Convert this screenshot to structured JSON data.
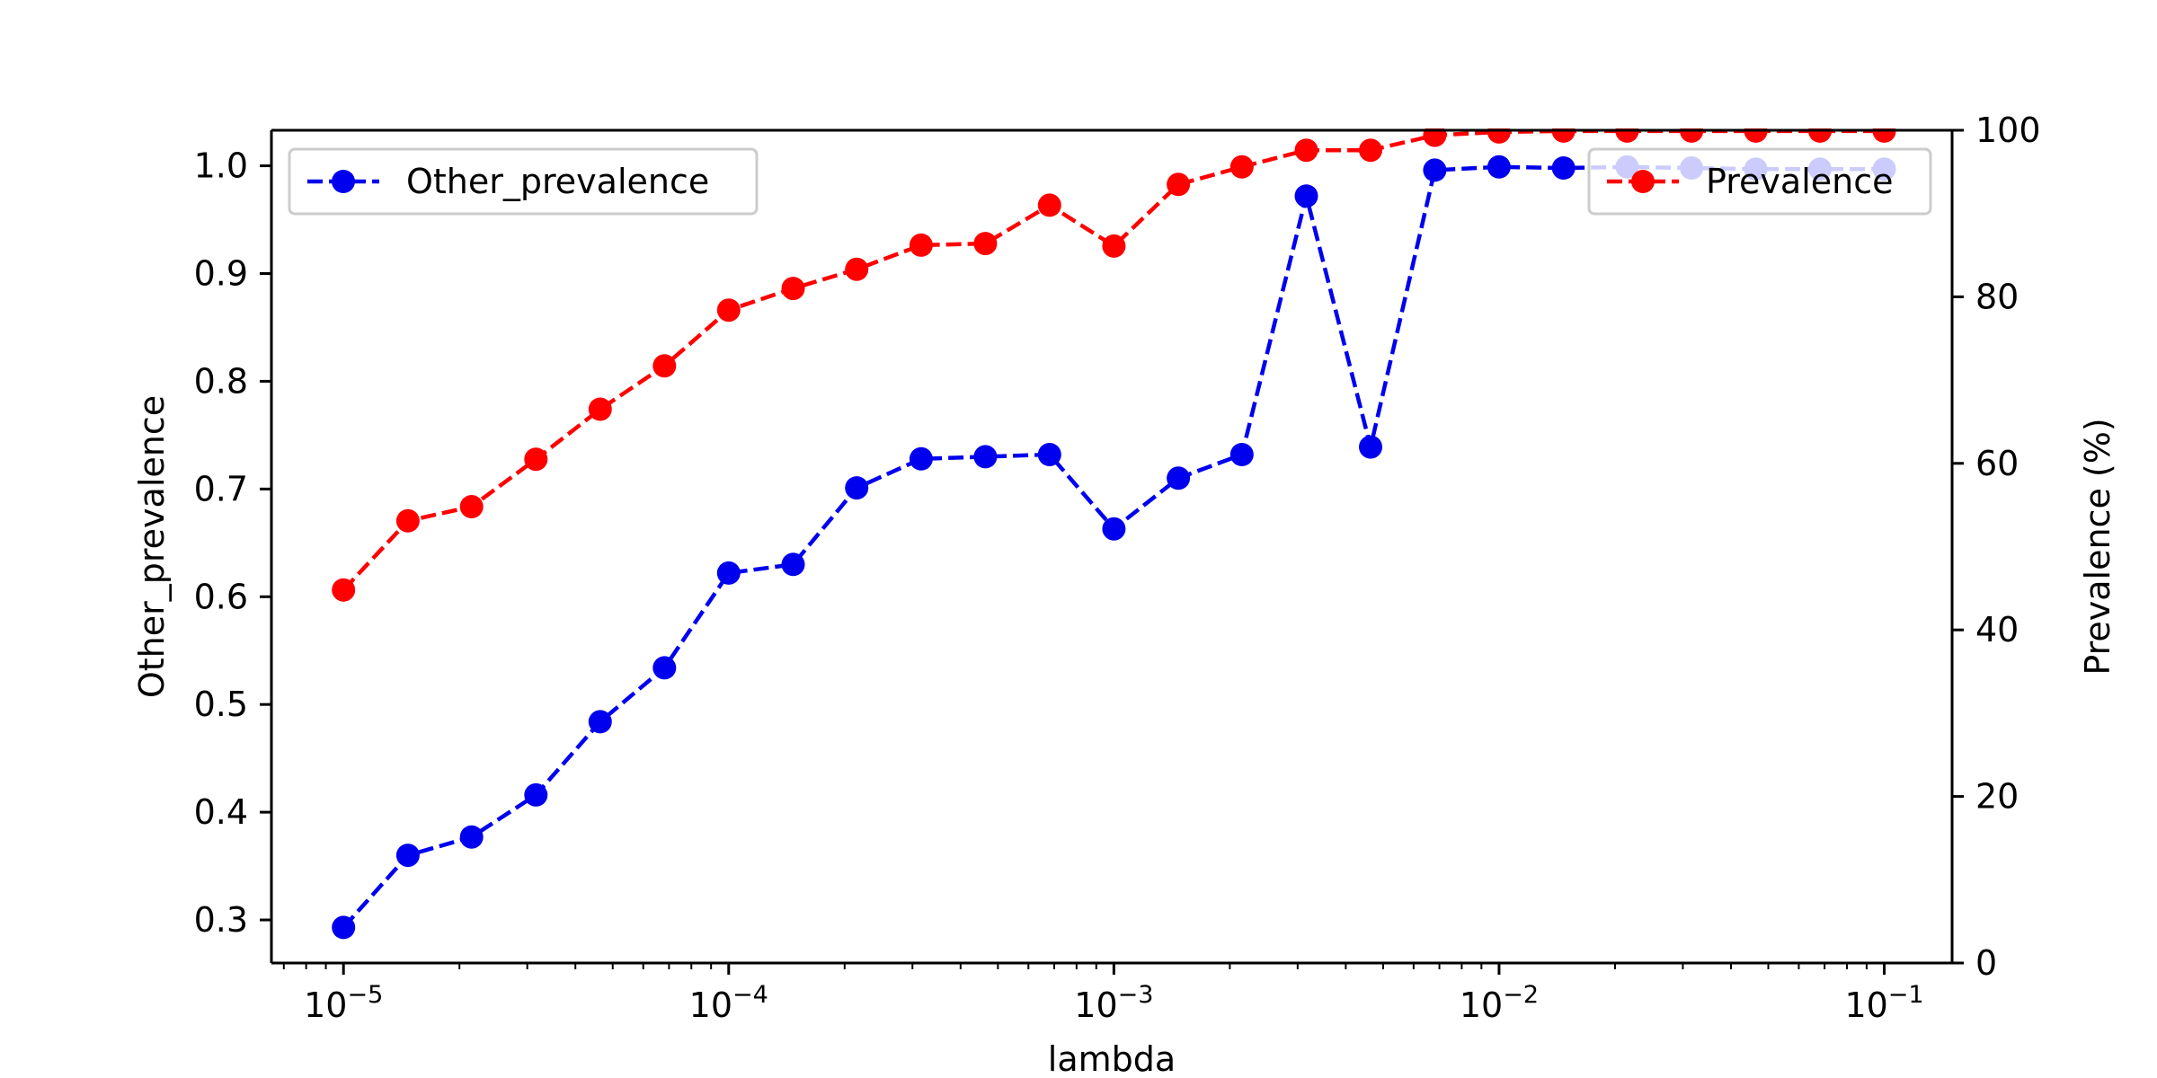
{
  "chart_data": {
    "type": "line",
    "title": "",
    "xlabel": "lambda",
    "ylabel_left": "Other_prevalence",
    "ylabel_right": "Prevalence (%)",
    "x_scale": "log",
    "xlim": [
      6.5e-06,
      0.15
    ],
    "ylim_left": [
      0.26,
      1.033
    ],
    "ylim_right": [
      0,
      100
    ],
    "x_ticks": [
      {
        "value": 1e-05,
        "base": "10",
        "exp": "−5"
      },
      {
        "value": 0.0001,
        "base": "10",
        "exp": "−4"
      },
      {
        "value": 0.001,
        "base": "10",
        "exp": "−3"
      },
      {
        "value": 0.01,
        "base": "10",
        "exp": "−2"
      },
      {
        "value": 0.1,
        "base": "10",
        "exp": "−1"
      }
    ],
    "y_left_ticks": [
      "0.3",
      "0.4",
      "0.5",
      "0.6",
      "0.7",
      "0.8",
      "0.9",
      "1.0"
    ],
    "y_right_ticks": [
      "0",
      "20",
      "40",
      "60",
      "80",
      "100"
    ],
    "grid": false,
    "x": [
      1e-05,
      1.47e-05,
      2.15e-05,
      3.16e-05,
      4.64e-05,
      6.81e-05,
      0.0001,
      0.000147,
      0.000215,
      0.000316,
      0.000464,
      0.000681,
      0.001,
      0.00147,
      0.00215,
      0.00316,
      0.00464,
      0.00681,
      0.01,
      0.0147,
      0.0215,
      0.0316,
      0.0464,
      0.0681,
      0.1
    ],
    "series": [
      {
        "name": "Other_prevalence",
        "axis": "left",
        "color": "#0000ee",
        "linestyle": "dashed",
        "marker": "circle",
        "values": [
          0.293,
          0.36,
          0.377,
          0.416,
          0.484,
          0.534,
          0.622,
          0.63,
          0.701,
          0.728,
          0.73,
          0.732,
          0.663,
          0.71,
          0.732,
          0.972,
          0.739,
          0.996,
          0.999,
          0.998,
          0.999,
          0.998,
          0.997,
          0.997,
          0.997
        ]
      },
      {
        "name": "Prevalence",
        "axis": "right",
        "color": "#ff0000",
        "linestyle": "dashed",
        "marker": "circle",
        "values": [
          44.8,
          53.1,
          54.8,
          60.5,
          66.5,
          71.7,
          78.4,
          81.0,
          83.3,
          86.2,
          86.4,
          91.0,
          86.1,
          93.5,
          95.6,
          97.6,
          97.6,
          99.4,
          99.8,
          99.9,
          99.9,
          99.9,
          99.9,
          99.9,
          99.9
        ]
      }
    ],
    "legends": [
      {
        "series": "Other_prevalence",
        "placement": "upper-left"
      },
      {
        "series": "Prevalence",
        "placement": "upper-right"
      }
    ]
  }
}
